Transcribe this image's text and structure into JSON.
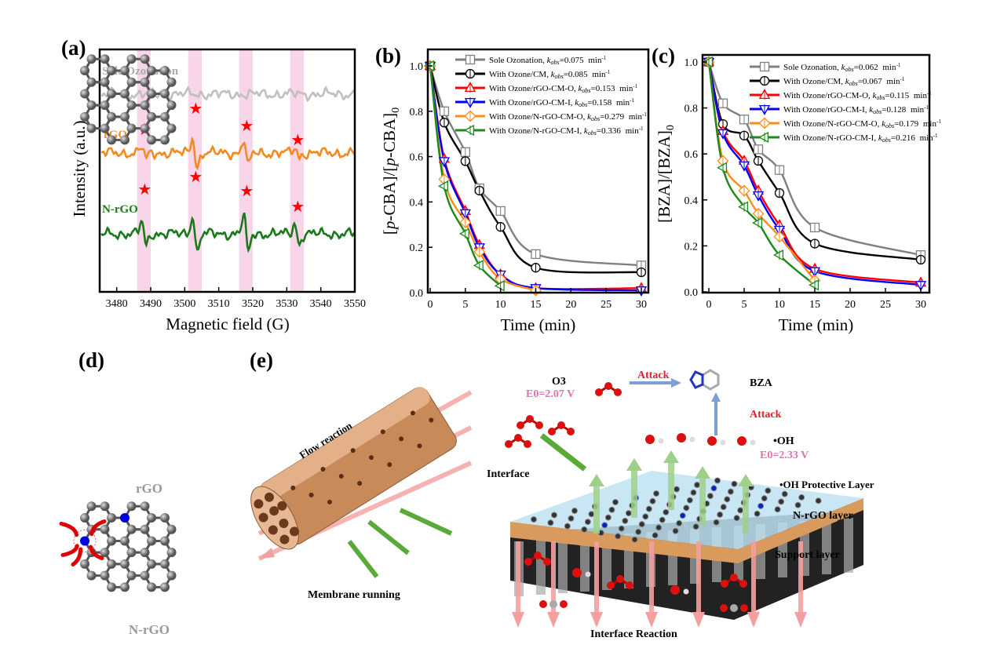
{
  "panel_labels": {
    "a": "(a)",
    "b": "(b)",
    "c": "(c)",
    "d": "(d)",
    "e": "(e)"
  },
  "chart_data": [
    {
      "id": "a",
      "type": "line",
      "xlabel": "Magnetic field (G)",
      "ylabel": "Intensity (a.u.)",
      "xlim": [
        3475,
        3550
      ],
      "xticks": [
        3480,
        3490,
        3500,
        3510,
        3520,
        3530,
        3540,
        3550
      ],
      "yticks_shown": false,
      "grid": false,
      "highlight_bands_G": [
        3488,
        3503,
        3518,
        3533
      ],
      "highlight_color": "#f9d5ea",
      "series": [
        {
          "name": "Sole Ozonation",
          "color": "#c0c0c0",
          "peak_amplitudes": [
            0,
            0,
            0,
            0
          ],
          "marked_peaks": []
        },
        {
          "name": "rGO",
          "color": "#f28a1e",
          "peak_amplitudes": [
            0.4,
            1.0,
            0.9,
            0.3
          ],
          "marked_peaks": [
            3488,
            3503,
            3518,
            3533
          ]
        },
        {
          "name": "N-rGO",
          "color": "#1a7a1a",
          "peak_amplitudes": [
            0.7,
            1.1,
            1.1,
            0.6
          ],
          "marked_peaks": [
            3488,
            3503,
            3518,
            3533
          ]
        }
      ],
      "marker_color": "#ff0000"
    },
    {
      "id": "b",
      "type": "line",
      "xlabel": "Time (min)",
      "ylabel": "[p-CBA]/[p-CBA]0",
      "xlim": [
        0,
        30
      ],
      "ylim": [
        0,
        1.0
      ],
      "xticks": [
        0,
        5,
        10,
        15,
        20,
        25,
        30
      ],
      "yticks": [
        "0.0",
        "0.2",
        "0.4",
        "0.6",
        "0.8",
        "1.0"
      ],
      "legend_position": "top-right",
      "rate_symbol": "k",
      "rate_subscript": "obs",
      "rate_unit": "min",
      "rate_unit_exp": "-1",
      "series": [
        {
          "name": "Sole Ozonation",
          "kobs": "0.075",
          "color": "#808080",
          "marker": "square",
          "x": [
            0,
            2,
            5,
            7,
            10,
            15,
            30
          ],
          "y": [
            1.0,
            0.8,
            0.62,
            0.46,
            0.36,
            0.17,
            0.12
          ]
        },
        {
          "name": "With Ozone/CM",
          "kobs": "0.085",
          "color": "#000000",
          "marker": "circle",
          "x": [
            0,
            2,
            5,
            7,
            10,
            15,
            30
          ],
          "y": [
            1.0,
            0.75,
            0.58,
            0.45,
            0.29,
            0.11,
            0.09
          ]
        },
        {
          "name": "With Ozone/rGO-CM-O",
          "kobs": "0.153",
          "color": "#ff0000",
          "marker": "triangle-up",
          "x": [
            0,
            2,
            5,
            7,
            10,
            15,
            30
          ],
          "y": [
            1.0,
            0.59,
            0.36,
            0.21,
            0.08,
            0.02,
            0.02
          ]
        },
        {
          "name": "With Ozone/rGO-CM-I",
          "kobs": "0.158",
          "color": "#0000ff",
          "marker": "triangle-down",
          "x": [
            0,
            2,
            5,
            7,
            10,
            15,
            30
          ],
          "y": [
            1.0,
            0.58,
            0.35,
            0.2,
            0.08,
            0.02,
            0.01
          ]
        },
        {
          "name": "With Ozone/N-rGO-CM-O",
          "kobs": "0.279",
          "color": "#ff8c1a",
          "marker": "diamond",
          "x": [
            0,
            2,
            5,
            7,
            10,
            15
          ],
          "y": [
            1.0,
            0.5,
            0.31,
            0.18,
            0.06,
            0.01
          ]
        },
        {
          "name": "With Ozone/N-rGO-CM-I",
          "kobs": "0.336",
          "color": "#1a8a1a",
          "marker": "triangle-left",
          "x": [
            0,
            2,
            5,
            7,
            10
          ],
          "y": [
            1.0,
            0.47,
            0.26,
            0.12,
            0.03
          ]
        }
      ]
    },
    {
      "id": "c",
      "type": "line",
      "xlabel": "Time (min)",
      "ylabel": "[BZA]/[BZA]0",
      "xlim": [
        0,
        30
      ],
      "ylim": [
        0,
        1.0
      ],
      "xticks": [
        0,
        5,
        10,
        15,
        20,
        25,
        30
      ],
      "yticks": [
        "0.0",
        "0.2",
        "0.4",
        "0.6",
        "0.8",
        "1.0"
      ],
      "legend_position": "top-right",
      "rate_symbol": "k",
      "rate_subscript": "obs",
      "rate_unit": "min",
      "rate_unit_exp": "-1",
      "series": [
        {
          "name": "Sole Ozonation",
          "kobs": "0.062",
          "color": "#808080",
          "marker": "square",
          "x": [
            0,
            2,
            5,
            7,
            10,
            15,
            30
          ],
          "y": [
            1.0,
            0.82,
            0.75,
            0.62,
            0.53,
            0.28,
            0.16
          ]
        },
        {
          "name": "With Ozone/CM",
          "kobs": "0.067",
          "color": "#000000",
          "marker": "circle",
          "x": [
            0,
            2,
            5,
            7,
            10,
            15,
            30
          ],
          "y": [
            1.0,
            0.73,
            0.68,
            0.57,
            0.43,
            0.21,
            0.14
          ]
        },
        {
          "name": "With Ozone/rGO-CM-O",
          "kobs": "0.115",
          "color": "#ff0000",
          "marker": "triangle-up",
          "x": [
            0,
            2,
            5,
            7,
            10,
            15,
            30
          ],
          "y": [
            1.0,
            0.7,
            0.57,
            0.44,
            0.29,
            0.1,
            0.04
          ]
        },
        {
          "name": "With Ozone/rGO-CM-I",
          "kobs": "0.128",
          "color": "#0000ff",
          "marker": "triangle-down",
          "x": [
            0,
            2,
            5,
            7,
            10,
            15,
            30
          ],
          "y": [
            1.0,
            0.69,
            0.55,
            0.42,
            0.27,
            0.09,
            0.03
          ]
        },
        {
          "name": "With Ozone/N-rGO-CM-O",
          "kobs": "0.179",
          "color": "#ff8c1a",
          "marker": "diamond",
          "x": [
            0,
            2,
            5,
            7,
            10,
            15
          ],
          "y": [
            1.0,
            0.57,
            0.44,
            0.34,
            0.24,
            0.05
          ]
        },
        {
          "name": "With Ozone/N-rGO-CM-I",
          "kobs": "0.216",
          "color": "#1a8a1a",
          "marker": "triangle-left",
          "x": [
            0,
            2,
            5,
            7,
            10,
            15
          ],
          "y": [
            1.0,
            0.54,
            0.37,
            0.3,
            0.16,
            0.03
          ]
        }
      ]
    }
  ],
  "panel_d": {
    "top_label": "rGO",
    "bottom_label": "N-rGO",
    "carbon_color": "#555555",
    "nitrogen_color": "#0000dd",
    "arrow_color": "#e00000"
  },
  "panel_e": {
    "flow_reaction": "Flow reaction",
    "membrane_running": "Membrane running",
    "interface": "Interface",
    "o3": "O3",
    "o3_potential": "E0=2.07 V",
    "attack_1": "Attack",
    "attack_2": "Attack",
    "bza": "BZA",
    "oh": "•OH",
    "oh_potential": "E0=2.33 V",
    "oh_protective_layer": "•OH Protective Layer",
    "nrgo_layer": "N-rGO layer",
    "support_layer": "Support layer",
    "interface_reaction": "Interface Reaction",
    "colors": {
      "attack": "#e0202a",
      "potential": "#e070b0",
      "ozone": "#dd1010",
      "flow_arrow": "#f4a0a0",
      "green_arrow": "#5aaa3a",
      "blue_arrow": "#7b9fd6"
    }
  }
}
